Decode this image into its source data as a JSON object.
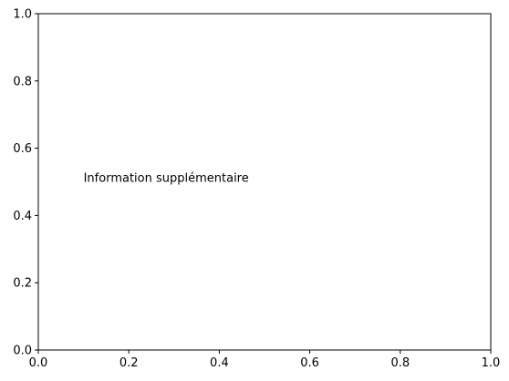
{
  "chart_data": {
    "type": "scatter",
    "title": "",
    "xlabel": "",
    "ylabel": "",
    "xlim": [
      0.0,
      1.0
    ],
    "ylim": [
      0.0,
      1.0
    ],
    "x_ticks": [
      "0.0",
      "0.2",
      "0.4",
      "0.6",
      "0.8",
      "1.0"
    ],
    "y_ticks": [
      "0.0",
      "0.2",
      "0.4",
      "0.6",
      "0.8",
      "1.0"
    ],
    "grid": false,
    "series": [],
    "annotations": [
      {
        "text": "Information supplémentaire",
        "x": 0.1,
        "y": 0.5
      }
    ]
  }
}
